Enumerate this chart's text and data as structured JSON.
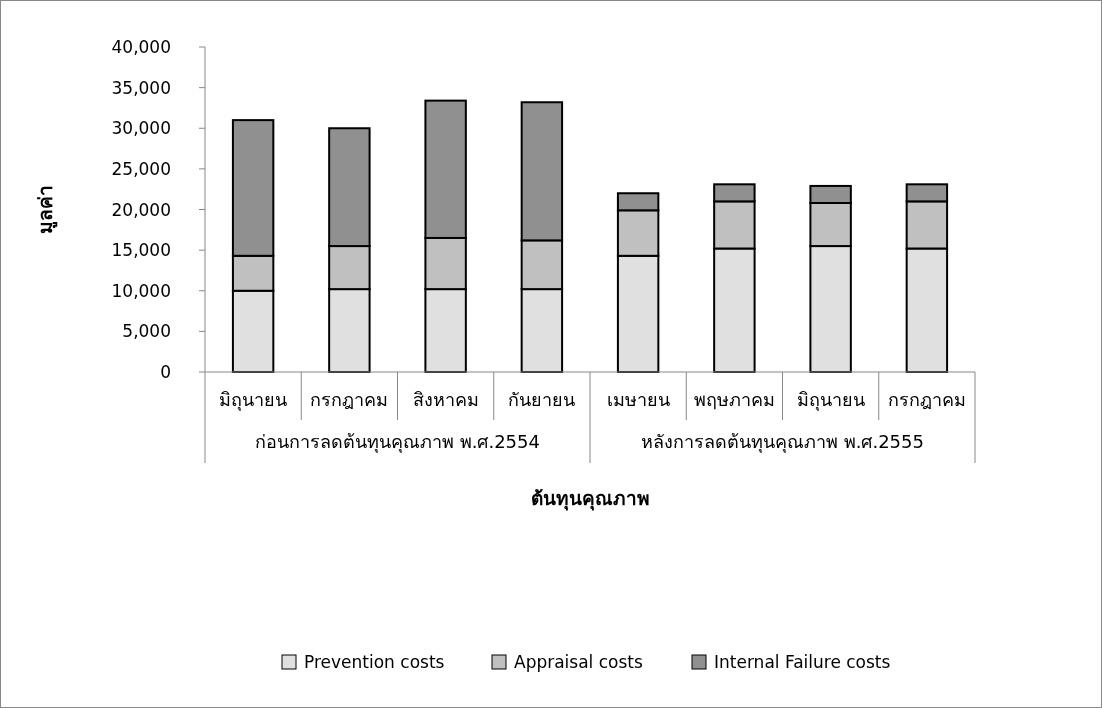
{
  "chart_data": {
    "type": "bar",
    "stacked": true,
    "xlabel": "ต้นทุนคุณภาพ",
    "ylabel": "มูลค่า",
    "categories": [
      "มิถุนายน",
      "กรกฎาคม",
      "สิงหาคม",
      "กันยายน",
      "เมษายน",
      "พฤษภาคม",
      "มิถุนายน",
      "กรกฎาคม"
    ],
    "annotations": [
      "ก่อนการลดต้นทุนคุณภาพ พ.ศ.2554",
      "หลังการลดต้นทุนคุณภาพ พ.ศ.2555"
    ],
    "series": [
      {
        "name": "Prevention costs",
        "color": "#e0e0e0",
        "values": [
          10000,
          10200,
          10200,
          10200,
          14300,
          15200,
          15500,
          15200
        ]
      },
      {
        "name": "Appraisal costs",
        "color": "#c0c0c0",
        "values": [
          4300,
          5300,
          6300,
          6000,
          5600,
          5800,
          5300,
          5800
        ]
      },
      {
        "name": "Internal Failure costs",
        "color": "#909090",
        "values": [
          16700,
          14500,
          16900,
          17000,
          2100,
          2100,
          2100,
          2100
        ]
      }
    ],
    "ylim": [
      0,
      40000
    ],
    "yticks": [
      {
        "value": 0,
        "label": "0"
      },
      {
        "value": 5000,
        "label": "5,000"
      },
      {
        "value": 10000,
        "label": "10,000"
      },
      {
        "value": 15000,
        "label": "15,000"
      },
      {
        "value": 20000,
        "label": "20,000"
      },
      {
        "value": 25000,
        "label": "25,000"
      },
      {
        "value": 30000,
        "label": "30,000"
      },
      {
        "value": 35000,
        "label": "35,000"
      },
      {
        "value": 40000,
        "label": "40,000"
      }
    ],
    "grid": false,
    "legend": "bottom"
  }
}
